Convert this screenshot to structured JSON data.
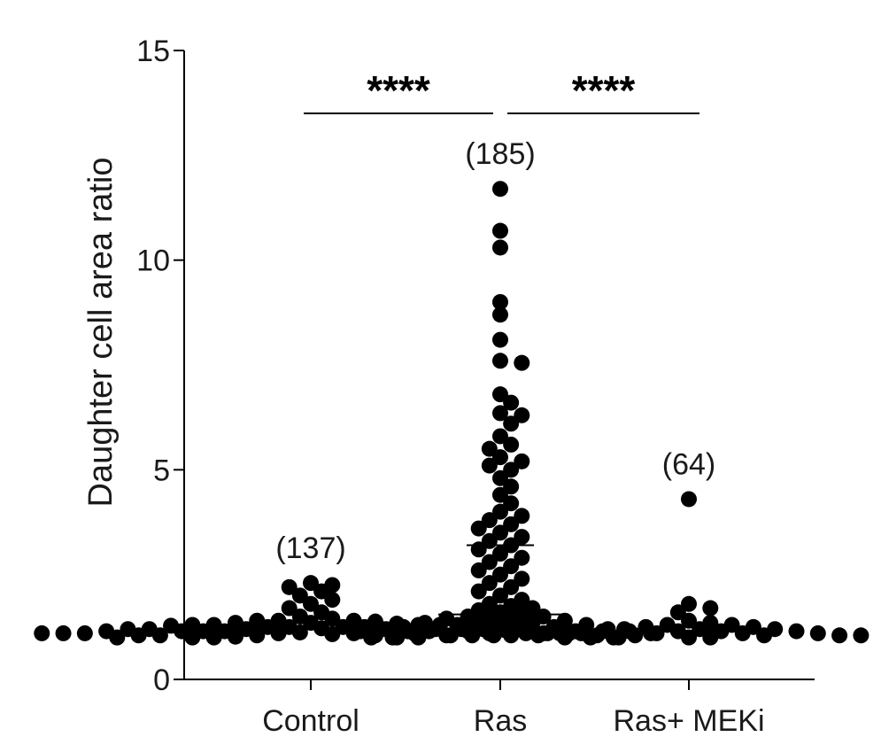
{
  "chart_data": {
    "type": "scatter",
    "subtype": "dot-strip",
    "ylabel": "Daughter cell area ratio",
    "ylim": [
      0,
      15
    ],
    "yticks": [
      0,
      5,
      10,
      15
    ],
    "categories": [
      "Control",
      "Ras",
      "Ras+ MEKi"
    ],
    "counts": [
      "(137)",
      "(185)",
      "(64)"
    ],
    "grid": false,
    "legend": "none",
    "series": [
      {
        "category": "Control",
        "values": [
          2.3,
          2.25,
          2.2,
          2.1,
          2.0,
          1.9,
          1.8,
          1.7,
          1.6,
          1.5,
          1.45,
          1.4,
          1.4,
          1.4,
          1.38,
          1.35,
          1.35,
          1.33,
          1.3,
          1.3,
          1.3,
          1.3,
          1.28,
          1.25,
          1.25,
          1.25,
          1.25,
          1.22,
          1.2,
          1.2,
          1.2,
          1.2,
          1.2,
          1.2,
          1.18,
          1.15,
          1.15,
          1.15,
          1.15,
          1.15,
          1.15,
          1.12,
          1.1,
          1.1,
          1.1,
          1.1,
          1.1,
          1.1,
          1.1,
          1.1,
          1.08,
          1.05,
          1.05,
          1.05,
          1.05,
          1.05,
          1.05,
          1.05,
          1.02,
          1.0,
          1.0,
          1.0,
          1.0,
          1.0,
          1.0
        ],
        "mean": null,
        "median": null
      },
      {
        "category": "Ras",
        "values": [
          11.7,
          10.7,
          10.3,
          9.0,
          8.7,
          8.1,
          7.6,
          7.55,
          6.8,
          6.6,
          6.35,
          6.3,
          6.1,
          5.8,
          5.6,
          5.5,
          5.3,
          5.2,
          5.1,
          5.0,
          4.8,
          4.6,
          4.4,
          4.2,
          4.0,
          3.9,
          3.8,
          3.7,
          3.6,
          3.5,
          3.4,
          3.3,
          3.2,
          3.1,
          3.0,
          2.9,
          2.8,
          2.7,
          2.6,
          2.5,
          2.4,
          2.3,
          2.2,
          2.1,
          2.0,
          1.9,
          1.8,
          1.75,
          1.7,
          1.65,
          1.6,
          1.55,
          1.5,
          1.5,
          1.45,
          1.45,
          1.4,
          1.4,
          1.35,
          1.35,
          1.3,
          1.3,
          1.3,
          1.25,
          1.25,
          1.25,
          1.2,
          1.2,
          1.2,
          1.2,
          1.15,
          1.15,
          1.15,
          1.15,
          1.1,
          1.1,
          1.1,
          1.1,
          1.05,
          1.05,
          1.05,
          1.0,
          1.0,
          1.0,
          1.0
        ],
        "mean": 3.2,
        "median": 1.55
      },
      {
        "category": "Ras+ MEKi",
        "values": [
          4.3,
          1.8,
          1.7,
          1.6,
          1.4,
          1.35,
          1.3,
          1.3,
          1.25,
          1.25,
          1.2,
          1.2,
          1.2,
          1.15,
          1.15,
          1.15,
          1.15,
          1.1,
          1.1,
          1.1,
          1.1,
          1.1,
          1.05,
          1.05,
          1.05,
          1.05,
          1.05,
          1.0,
          1.0,
          1.0
        ],
        "mean": null,
        "median": null
      }
    ],
    "comparisons": [
      {
        "from": "Control",
        "to": "Ras",
        "label": "****",
        "y": 13.5
      },
      {
        "from": "Ras",
        "to": "Ras+ MEKi",
        "label": "****",
        "y": 13.5
      }
    ]
  }
}
